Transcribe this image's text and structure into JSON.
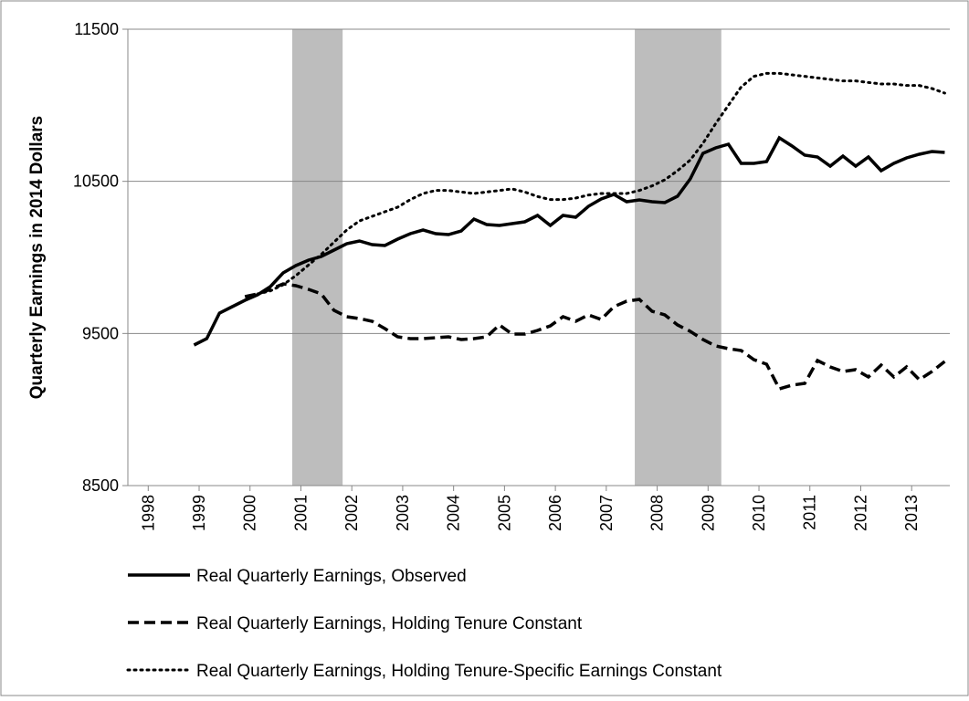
{
  "chart_data": {
    "type": "line",
    "y_label": "Quarterly Earnings in 2014 Dollars",
    "x": [
      1998.9,
      1999.15,
      1999.4,
      1999.65,
      1999.9,
      2000.15,
      2000.4,
      2000.65,
      2000.9,
      2001.15,
      2001.4,
      2001.65,
      2001.9,
      2002.15,
      2002.4,
      2002.65,
      2002.9,
      2003.15,
      2003.4,
      2003.65,
      2003.9,
      2004.15,
      2004.4,
      2004.65,
      2004.9,
      2005.15,
      2005.4,
      2005.65,
      2005.9,
      2006.15,
      2006.4,
      2006.65,
      2006.9,
      2007.15,
      2007.4,
      2007.65,
      2007.9,
      2008.15,
      2008.4,
      2008.65,
      2008.9,
      2009.15,
      2009.4,
      2009.65,
      2009.9,
      2010.15,
      2010.4,
      2010.65,
      2010.9,
      2011.15,
      2011.4,
      2011.65,
      2011.9,
      2012.15,
      2012.4,
      2012.65,
      2012.9,
      2013.15,
      2013.4,
      2013.65
    ],
    "series": [
      {
        "name": "Real Quarterly Earnings, Observed",
        "color": "#000000",
        "style": "solid",
        "values": [
          9424,
          9466,
          9634,
          9676,
          9718,
          9754,
          9808,
          9898,
          9946,
          9982,
          10006,
          10048,
          10090,
          10108,
          10084,
          10078,
          10120,
          10156,
          10180,
          10156,
          10150,
          10174,
          10252,
          10216,
          10210,
          10222,
          10234,
          10276,
          10210,
          10276,
          10264,
          10336,
          10384,
          10414,
          10366,
          10378,
          10366,
          10360,
          10402,
          10516,
          10684,
          10720,
          10744,
          10618,
          10618,
          10630,
          10786,
          10732,
          10672,
          10660,
          10600,
          10666,
          10600,
          10660,
          10570,
          10618,
          10654,
          10678,
          10696,
          10690
        ]
      },
      {
        "name": "Real Quarterly Earnings, Holding Tenure Constant",
        "color": "#000000",
        "style": "dashed",
        "values": [
          null,
          null,
          null,
          null,
          9742,
          9760,
          9790,
          9826,
          9814,
          9790,
          9760,
          9652,
          9610,
          9598,
          9580,
          9532,
          9478,
          9466,
          9466,
          9472,
          9478,
          9460,
          9466,
          9478,
          9556,
          9496,
          9496,
          9520,
          9550,
          9610,
          9580,
          9622,
          9592,
          9676,
          9712,
          9724,
          9646,
          9622,
          9556,
          9514,
          9460,
          9418,
          9400,
          9388,
          9328,
          9298,
          9136,
          9160,
          9172,
          9322,
          9280,
          9250,
          9262,
          9214,
          9292,
          9214,
          9280,
          9196,
          9250,
          9316
        ]
      },
      {
        "name": "Real Quarterly Earnings, Holding Tenure-Specific Earnings Constant",
        "color": "#000000",
        "style": "dotted",
        "values": [
          null,
          null,
          null,
          null,
          null,
          9760,
          9780,
          9820,
          9880,
          9950,
          10020,
          10100,
          10180,
          10240,
          10270,
          10300,
          10330,
          10380,
          10420,
          10440,
          10440,
          10430,
          10420,
          10430,
          10440,
          10450,
          10430,
          10400,
          10380,
          10380,
          10390,
          10410,
          10420,
          10420,
          10420,
          10440,
          10470,
          10510,
          10570,
          10640,
          10750,
          10880,
          11000,
          11120,
          11190,
          11210,
          11210,
          11200,
          11190,
          11180,
          11170,
          11160,
          11160,
          11150,
          11140,
          11140,
          11130,
          11130,
          11110,
          11080
        ]
      }
    ],
    "recession_shading": [
      [
        2000.83,
        2001.82
      ],
      [
        2007.56,
        2009.26
      ]
    ],
    "shading_color": "#bdbdbd",
    "xlim": [
      1997.6,
      2013.75
    ],
    "xticks": [
      1998,
      1999,
      2000,
      2001,
      2002,
      2003,
      2004,
      2005,
      2006,
      2007,
      2008,
      2009,
      2010,
      2011,
      2012,
      2013
    ],
    "ylim": [
      8500,
      11500
    ],
    "yticks": [
      8500,
      9500,
      10500,
      11500
    ],
    "grid": true
  }
}
